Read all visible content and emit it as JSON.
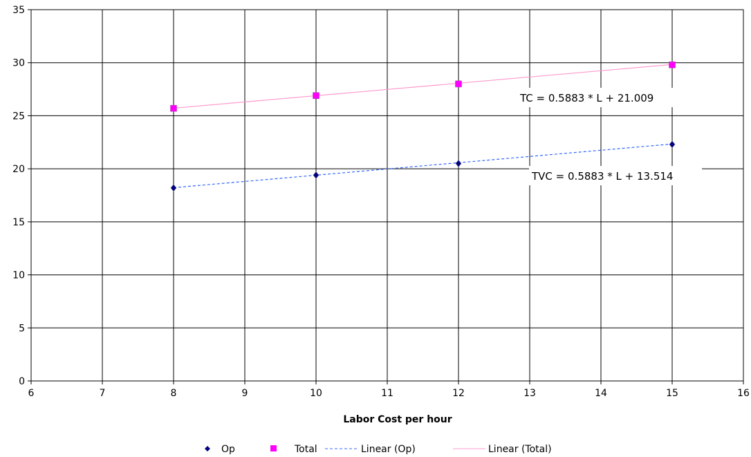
{
  "chart_data": {
    "type": "scatter",
    "title": "",
    "xlabel": "Labor Cost per hour",
    "ylabel": "",
    "xlim": [
      6,
      16
    ],
    "ylim": [
      0,
      35
    ],
    "x_ticks": [
      "6",
      "7",
      "8",
      "9",
      "10",
      "11",
      "12",
      "13",
      "14",
      "15",
      "16"
    ],
    "y_ticks": [
      "0",
      "5",
      "10",
      "15",
      "20",
      "25",
      "30",
      "35"
    ],
    "grid": true,
    "legend_position": "bottom",
    "series": [
      {
        "name": "Op",
        "marker": "diamond",
        "color": "#000080",
        "x": [
          8,
          10,
          12,
          15
        ],
        "y": [
          18.2,
          19.4,
          20.5,
          22.3
        ]
      },
      {
        "name": "Total",
        "marker": "square",
        "color": "#FF00FF",
        "x": [
          8,
          10,
          12,
          15
        ],
        "y": [
          25.7,
          26.9,
          28.0,
          29.8
        ]
      }
    ],
    "trendlines": [
      {
        "name": "Linear (Op)",
        "of": "Op",
        "color": "#3366FF",
        "dash": true,
        "slope": 0.5883,
        "intercept": 13.514,
        "x_range": [
          8,
          15
        ],
        "label": "TVC = 0.5883 * L + 13.514"
      },
      {
        "name": "Linear (Total)",
        "of": "Total",
        "color": "#FF99CC",
        "dash": false,
        "slope": 0.5883,
        "intercept": 21.009,
        "x_range": [
          8,
          15
        ],
        "label": "TC = 0.5883 * L + 21.009"
      }
    ]
  }
}
